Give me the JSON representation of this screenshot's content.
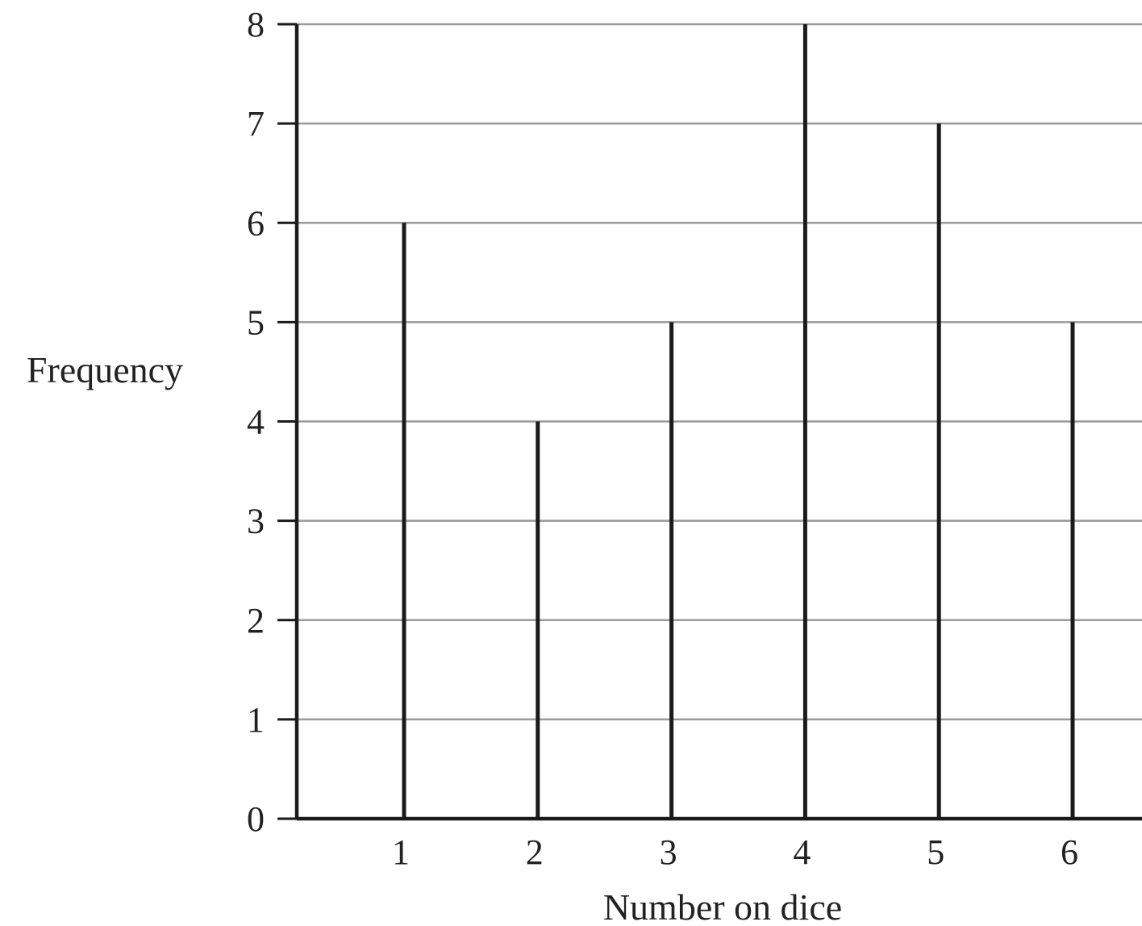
{
  "chart_data": {
    "type": "bar",
    "categories": [
      "1",
      "2",
      "3",
      "4",
      "5",
      "6"
    ],
    "values": [
      6,
      4,
      5,
      8,
      7,
      5
    ],
    "title": "",
    "xlabel": "Number on dice",
    "ylabel": "Frequency",
    "ylim": [
      0,
      8
    ],
    "yticks": [
      "0",
      "1",
      "2",
      "3",
      "4",
      "5",
      "6",
      "7",
      "8"
    ],
    "grid": true,
    "legend": "none",
    "bar_style": "vertical line",
    "colors": {
      "bar": "#1a1a1a",
      "axis": "#1a1a1a",
      "grid": "#9a9a9a",
      "text": "#222222"
    }
  }
}
